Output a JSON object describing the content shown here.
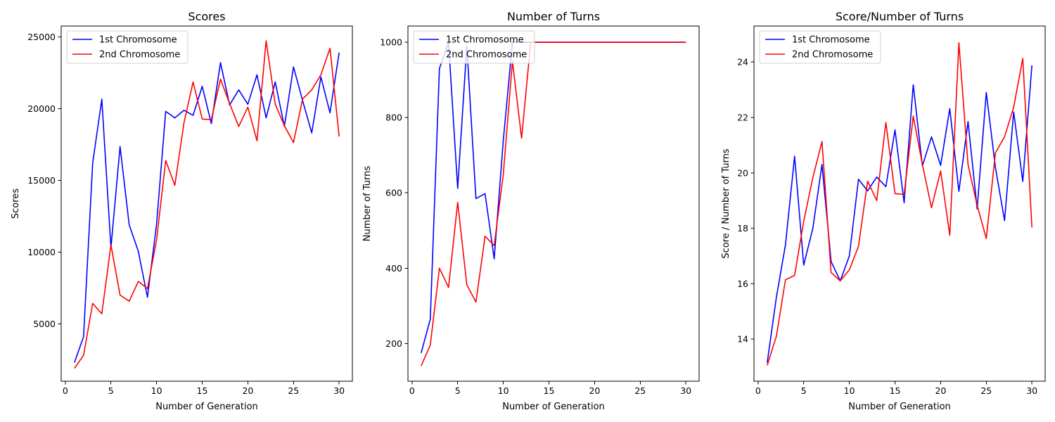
{
  "chart_data": [
    {
      "type": "line",
      "title": "Scores",
      "xlabel": "Number of Generation",
      "ylabel": "Scores",
      "xlim": [
        -0.45,
        31.45
      ],
      "ylim": [
        1000,
        25750
      ],
      "xticks": [
        0,
        5,
        10,
        15,
        20,
        25,
        30
      ],
      "yticks": [
        5000,
        10000,
        15000,
        20000,
        25000
      ],
      "legend": "upper-left",
      "grid": false,
      "x": [
        1,
        2,
        3,
        4,
        5,
        6,
        7,
        8,
        9,
        10,
        11,
        12,
        13,
        14,
        15,
        16,
        17,
        18,
        19,
        20,
        21,
        22,
        23,
        24,
        25,
        26,
        27,
        28,
        29,
        30
      ],
      "series": [
        {
          "name": "1st Chromosome",
          "color": "#0000ff",
          "values": [
            2300,
            4100,
            16200,
            20650,
            10300,
            17350,
            11900,
            10050,
            6850,
            11950,
            19800,
            19350,
            19880,
            19530,
            21550,
            18950,
            23200,
            20250,
            21300,
            20300,
            22350,
            19350,
            21850,
            18750,
            22900,
            20550,
            18300,
            22200,
            19700,
            23900
          ]
        },
        {
          "name": "2nd Chromosome",
          "color": "#ff0000",
          "values": [
            1900,
            2800,
            6420,
            5700,
            10500,
            7000,
            6580,
            7950,
            7450,
            10850,
            16380,
            14650,
            19000,
            21850,
            19270,
            19230,
            22050,
            20350,
            18750,
            20100,
            17750,
            24720,
            20300,
            18800,
            17630,
            20670,
            21300,
            22350,
            24200,
            18050
          ]
        }
      ]
    },
    {
      "type": "line",
      "title": "Number of Turns",
      "xlabel": "Number of Generation",
      "ylabel": "Number of Turns",
      "xlim": [
        -0.45,
        31.45
      ],
      "ylim": [
        100,
        1043
      ],
      "xticks": [
        0,
        5,
        10,
        15,
        20,
        25,
        30
      ],
      "yticks": [
        200,
        400,
        600,
        800,
        1000
      ],
      "legend": "upper-left",
      "grid": false,
      "x": [
        1,
        2,
        3,
        4,
        5,
        6,
        7,
        8,
        9,
        10,
        11,
        12,
        13,
        14,
        15,
        16,
        17,
        18,
        19,
        20,
        21,
        22,
        23,
        24,
        25,
        26,
        27,
        28,
        29,
        30
      ],
      "series": [
        {
          "name": "1st Chromosome",
          "color": "#0000ff",
          "values": [
            175,
            265,
            930,
            1000,
            612,
            990,
            585,
            598,
            425,
            740,
            1000,
            1000,
            1000,
            1000,
            1000,
            1000,
            1000,
            1000,
            1000,
            1000,
            1000,
            1000,
            1000,
            1000,
            1000,
            1000,
            1000,
            1000,
            1000,
            1000
          ]
        },
        {
          "name": "2nd Chromosome",
          "color": "#ff0000",
          "values": [
            141,
            196,
            400,
            349,
            575,
            356,
            310,
            485,
            460,
            650,
            950,
            745,
            1000,
            1000,
            1000,
            1000,
            1000,
            1000,
            1000,
            1000,
            1000,
            1000,
            1000,
            1000,
            1000,
            1000,
            1000,
            1000,
            1000,
            1000
          ]
        }
      ]
    },
    {
      "type": "line",
      "title": "Score/Number of Turns",
      "xlabel": "Number of Generation",
      "ylabel": "Score / Number of Turns",
      "xlim": [
        -0.45,
        31.45
      ],
      "ylim": [
        12.48,
        25.3
      ],
      "xticks": [
        0,
        5,
        10,
        15,
        20,
        25,
        30
      ],
      "yticks": [
        14,
        16,
        18,
        20,
        22,
        24
      ],
      "legend": "upper-left",
      "grid": false,
      "x": [
        1,
        2,
        3,
        4,
        5,
        6,
        7,
        8,
        9,
        10,
        11,
        12,
        13,
        14,
        15,
        16,
        17,
        18,
        19,
        20,
        21,
        22,
        23,
        24,
        25,
        26,
        27,
        28,
        29,
        30
      ],
      "series": [
        {
          "name": "1st Chromosome",
          "color": "#0000ff",
          "values": [
            13.15,
            15.5,
            17.4,
            20.6,
            16.67,
            18.0,
            20.3,
            16.8,
            16.1,
            17.0,
            19.77,
            19.35,
            19.85,
            19.5,
            21.55,
            18.92,
            23.18,
            20.25,
            21.3,
            20.27,
            22.32,
            19.33,
            21.85,
            18.7,
            22.9,
            20.2,
            18.28,
            22.2,
            19.69,
            23.88
          ]
        },
        {
          "name": "2nd Chromosome",
          "color": "#ff0000",
          "values": [
            13.05,
            14.1,
            16.14,
            16.3,
            18.25,
            19.83,
            21.13,
            16.4,
            16.1,
            16.5,
            17.35,
            19.7,
            19.0,
            21.82,
            19.25,
            19.22,
            22.05,
            20.3,
            18.74,
            20.07,
            17.75,
            24.7,
            20.3,
            18.83,
            17.63,
            20.72,
            21.3,
            22.37,
            24.13,
            18.03
          ]
        }
      ]
    }
  ]
}
